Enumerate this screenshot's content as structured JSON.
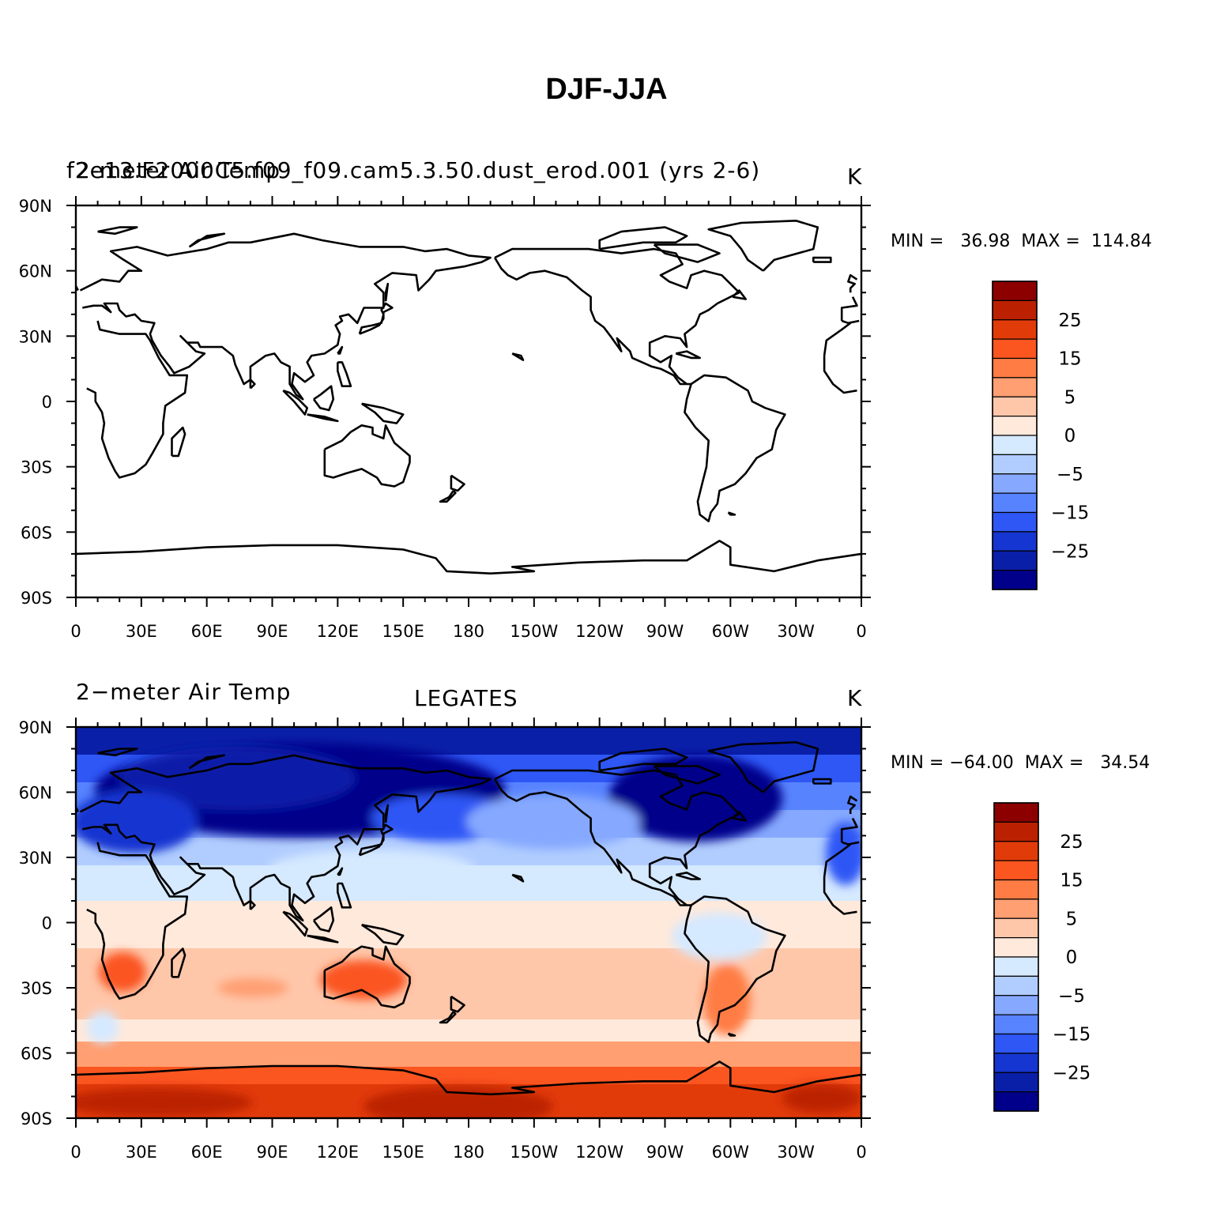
{
  "title": "DJF-JJA",
  "panels": [
    {
      "id": "model",
      "left_label": "2-meter Air Temp",
      "center_label": "f2e13.F2000C5.f09_f09.cam5.3.50.dust_erod.001 (yrs 2-6)",
      "right_label": "K",
      "min_max": "MIN =   36.98  MAX =  114.84",
      "filled": false
    },
    {
      "id": "obs",
      "left_label": "2−meter Air Temp",
      "center_label": "LEGATES",
      "right_label": "K",
      "min_max": "MIN = −64.00  MAX =   34.54",
      "filled": true
    }
  ],
  "axes": {
    "y_ticks": [
      "90N",
      "60N",
      "30N",
      "0",
      "30S",
      "60S",
      "90S"
    ],
    "x_ticks": [
      "0",
      "30E",
      "60E",
      "90E",
      "120E",
      "150E",
      "180",
      "150W",
      "120W",
      "90W",
      "60W",
      "30W",
      "0"
    ]
  },
  "colorbar": {
    "labels": [
      "25",
      "15",
      "5",
      "0",
      "−5",
      "−15",
      "−25"
    ],
    "colors": [
      "#8c0000",
      "#bb2100",
      "#e23b0a",
      "#fb5520",
      "#ff7d45",
      "#ff9f72",
      "#ffc7aa",
      "#ffe9db",
      "#d5e9ff",
      "#b1cdff",
      "#86a9ff",
      "#5783ff",
      "#2e57f5",
      "#1536d0",
      "#0a1fa8",
      "#00008a"
    ]
  }
}
